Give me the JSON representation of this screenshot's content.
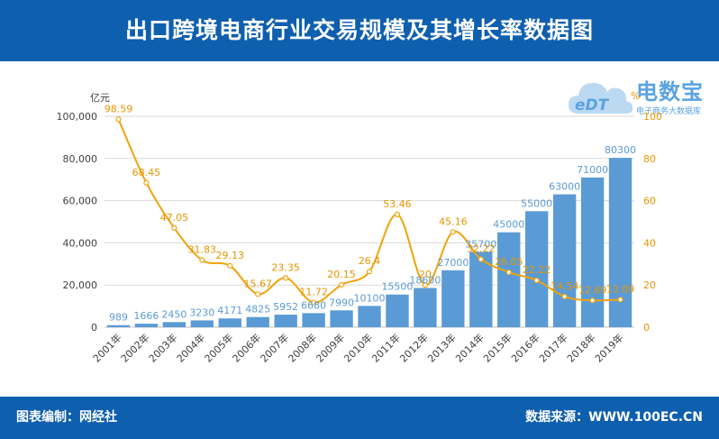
{
  "header": {
    "title": "出口跨境电商行业交易规模及其增长率数据图"
  },
  "footer": {
    "left": "图表编制：网经社",
    "right": "数据来源：WWW.100EC.CN"
  },
  "logo": {
    "name": "电数宝",
    "sub": "电子商务大数据库",
    "mark": "eDT",
    "icon": "cloud-logo-icon"
  },
  "colors": {
    "header_bg": "#0e5fae",
    "bar": "#5b9bd5",
    "line": "#f0a30a",
    "bar_label": "#5b9bd5",
    "line_label": "#e69500"
  },
  "chart_data": {
    "type": "bar",
    "title": "出口跨境电商行业交易规模及其增长率数据图",
    "categories": [
      "2001年",
      "2002年",
      "2003年",
      "2004年",
      "2005年",
      "2006年",
      "2007年",
      "2008年",
      "2009年",
      "2010年",
      "2011年",
      "2012年",
      "2013年",
      "2014年",
      "2015年",
      "2016年",
      "2017年",
      "2018年",
      "2019年"
    ],
    "series": [
      {
        "type": "bar",
        "axis": "left",
        "values": [
          989,
          1666,
          2450,
          3230,
          4171,
          4825,
          5952,
          6680,
          7990,
          10100,
          15500,
          18600,
          27000,
          35700,
          45000,
          55000,
          63000,
          71000,
          80300
        ]
      },
      {
        "type": "line",
        "axis": "right",
        "values": [
          98.59,
          68.45,
          47.05,
          31.83,
          29.13,
          15.67,
          23.35,
          11.72,
          20.15,
          26.4,
          53.46,
          20,
          45.16,
          32.22,
          26.05,
          22.22,
          14.54,
          12.69,
          13.09
        ]
      }
    ],
    "yleft": {
      "unit": "亿元",
      "ylim": [
        0,
        100000
      ],
      "ticks": [
        "0",
        "20,000",
        "40,000",
        "60,000",
        "80,000",
        "100,000"
      ]
    },
    "yright": {
      "unit": "%",
      "ylim": [
        0,
        100
      ],
      "ticks": [
        "0",
        "20",
        "40",
        "60",
        "80",
        "100"
      ]
    },
    "bar_labels": [
      "989",
      "1666",
      "2450",
      "3230",
      "4171",
      "4825",
      "5952",
      "6680",
      "7990",
      "10100",
      "15500",
      "18600",
      "27000",
      "35700",
      "45000",
      "55000",
      "63000",
      "71000",
      "80300"
    ],
    "line_labels": [
      "98.59",
      "68.45",
      "47.05",
      "31.83",
      "29.13",
      "15.67",
      "23.35",
      "11.72",
      "20.15",
      "26.4",
      "53.46",
      "20",
      "45.16",
      "32.22",
      "26.05",
      "22.22",
      "14.54",
      "12.69",
      "13.09"
    ],
    "grid": true,
    "legend": "none"
  }
}
